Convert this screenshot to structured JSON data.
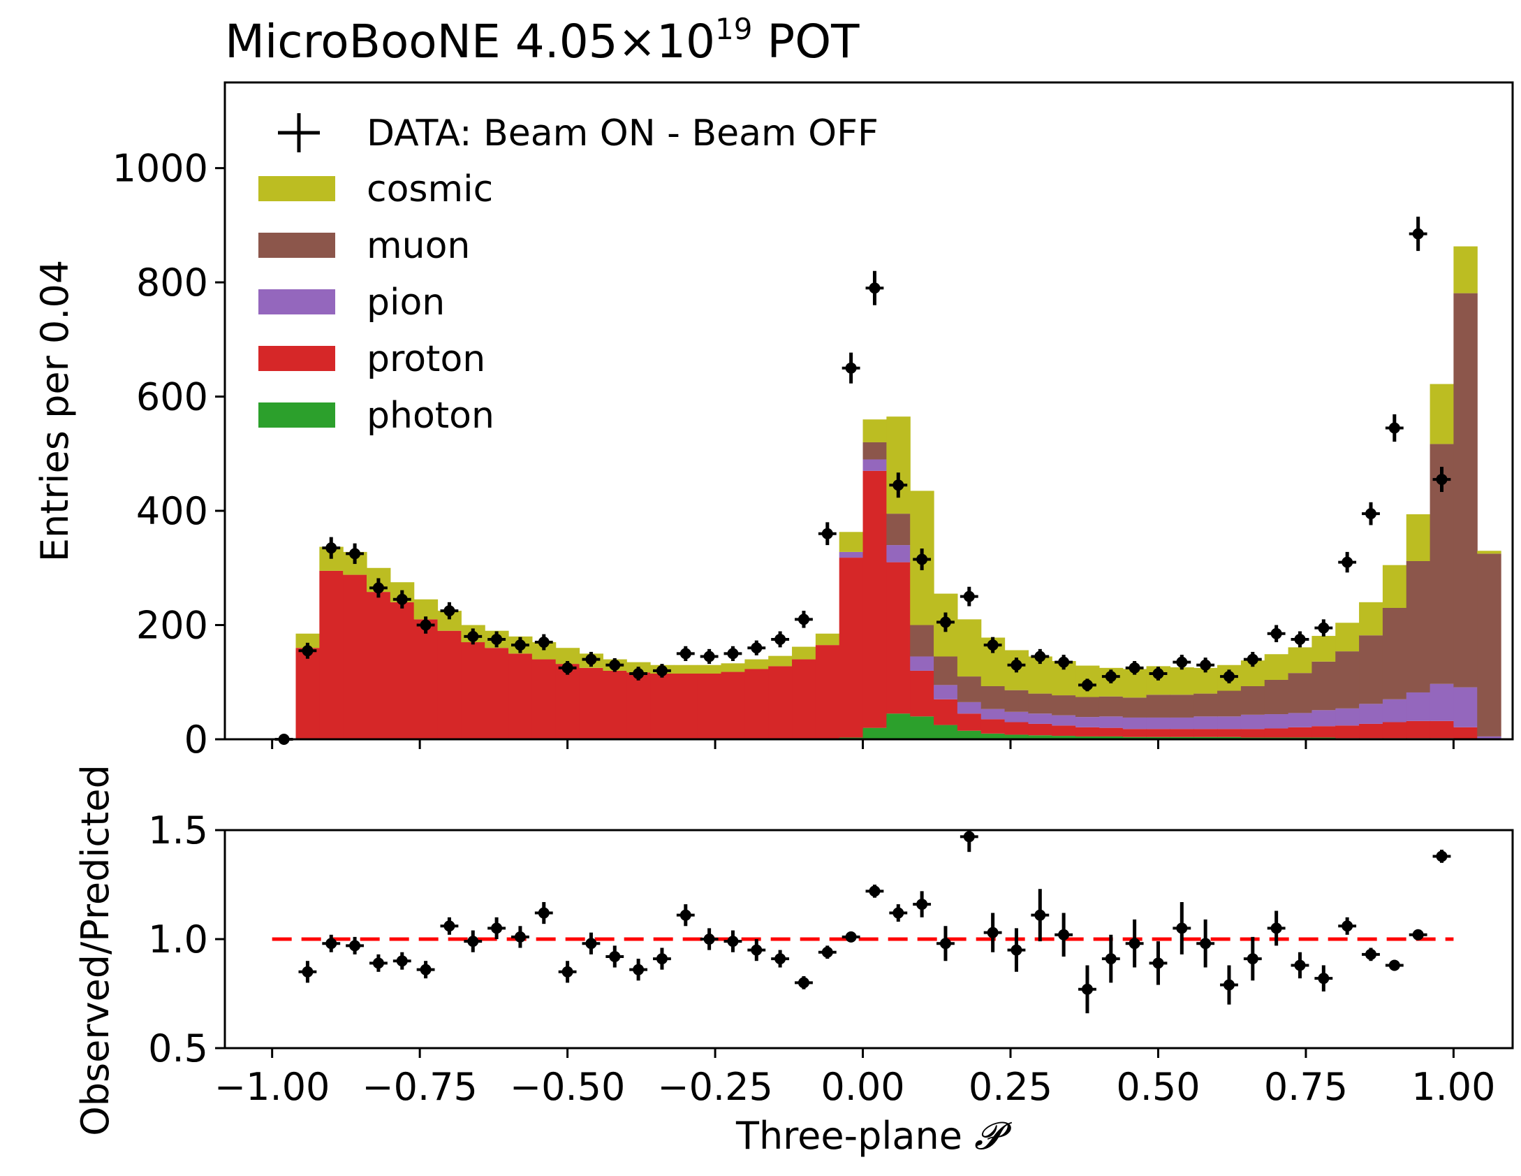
{
  "chart_data": [
    {
      "type": "stacked-histogram",
      "title": "MicroBooNE 4.05×10",
      "title_exponent": "19",
      "title_suffix": " POT",
      "ylabel": "Entries per 0.04",
      "xlim": [
        -1.08,
        1.1
      ],
      "ylim": [
        0,
        1150
      ],
      "yticks": [
        0,
        200,
        400,
        600,
        800,
        1000
      ],
      "ytick_labels": [
        "0",
        "200",
        "400",
        "600",
        "800",
        "1000"
      ],
      "bin_edges_start": -0.96,
      "bin_width": 0.04,
      "series": [
        {
          "name": "photon",
          "color": "#2ca02c",
          "values": [
            0,
            0,
            0,
            0,
            0,
            0,
            0,
            0,
            0,
            0,
            0,
            0,
            0,
            0,
            0,
            0,
            0,
            0,
            0,
            0,
            0,
            0,
            0,
            3,
            20,
            45,
            40,
            25,
            15,
            10,
            8,
            7,
            6,
            5,
            5,
            4,
            4,
            4,
            4,
            4,
            3,
            3,
            3,
            3,
            2,
            2,
            2,
            2,
            2,
            1,
            0
          ]
        },
        {
          "name": "proton",
          "color": "#d62728",
          "values": [
            160,
            295,
            288,
            258,
            240,
            210,
            190,
            170,
            160,
            150,
            140,
            132,
            125,
            120,
            117,
            115,
            115,
            115,
            118,
            123,
            128,
            140,
            165,
            315,
            450,
            265,
            80,
            45,
            30,
            25,
            22,
            20,
            18,
            16,
            15,
            14,
            14,
            14,
            14,
            14,
            15,
            16,
            18,
            20,
            22,
            25,
            28,
            30,
            30,
            20,
            0
          ]
        },
        {
          "name": "pion",
          "color": "#9467bd",
          "values": [
            0,
            0,
            0,
            0,
            0,
            0,
            0,
            0,
            0,
            0,
            0,
            0,
            0,
            0,
            0,
            0,
            0,
            0,
            0,
            0,
            0,
            0,
            0,
            10,
            20,
            30,
            25,
            25,
            20,
            18,
            18,
            18,
            18,
            18,
            20,
            20,
            20,
            20,
            22,
            22,
            25,
            25,
            25,
            28,
            30,
            35,
            40,
            50,
            65,
            70,
            5
          ]
        },
        {
          "name": "muon",
          "color": "#8c564b",
          "values": [
            0,
            0,
            0,
            0,
            0,
            0,
            0,
            0,
            0,
            0,
            0,
            0,
            0,
            0,
            0,
            0,
            0,
            0,
            0,
            0,
            0,
            0,
            0,
            0,
            30,
            55,
            55,
            50,
            45,
            40,
            38,
            35,
            35,
            35,
            35,
            35,
            40,
            40,
            40,
            45,
            50,
            60,
            70,
            85,
            100,
            120,
            160,
            230,
            420,
            690,
            320
          ]
        },
        {
          "name": "cosmic",
          "color": "#bcbd22",
          "values": [
            25,
            42,
            40,
            42,
            35,
            35,
            35,
            30,
            30,
            30,
            30,
            28,
            25,
            20,
            18,
            15,
            15,
            15,
            15,
            17,
            18,
            22,
            20,
            35,
            40,
            170,
            235,
            110,
            100,
            85,
            70,
            65,
            60,
            55,
            50,
            50,
            50,
            48,
            45,
            45,
            45,
            45,
            45,
            45,
            50,
            58,
            75,
            82,
            105,
            82,
            5
          ]
        }
      ],
      "data_series": {
        "name": "DATA: Beam ON - Beam OFF",
        "x": [
          -0.98,
          -0.94,
          -0.9,
          -0.86,
          -0.82,
          -0.78,
          -0.74,
          -0.7,
          -0.66,
          -0.62,
          -0.58,
          -0.54,
          -0.5,
          -0.46,
          -0.42,
          -0.38,
          -0.34,
          -0.3,
          -0.26,
          -0.22,
          -0.18,
          -0.14,
          -0.1,
          -0.06,
          -0.02,
          0.02,
          0.06,
          0.1,
          0.14,
          0.18,
          0.22,
          0.26,
          0.3,
          0.34,
          0.38,
          0.42,
          0.46,
          0.5,
          0.54,
          0.58,
          0.62,
          0.66,
          0.7,
          0.74,
          0.78,
          0.82,
          0.86,
          0.9,
          0.94,
          0.98
        ],
        "y": [
          0,
          155,
          335,
          325,
          265,
          245,
          200,
          225,
          180,
          175,
          165,
          170,
          125,
          140,
          130,
          115,
          120,
          150,
          145,
          150,
          160,
          175,
          210,
          360,
          650,
          790,
          445,
          315,
          205,
          250,
          165,
          130,
          145,
          135,
          95,
          110,
          125,
          115,
          135,
          130,
          110,
          140,
          185,
          175,
          195,
          310,
          395,
          545,
          885,
          455
        ],
        "yerr": [
          3,
          14,
          19,
          18,
          17,
          16,
          15,
          15,
          14,
          14,
          14,
          14,
          12,
          13,
          12,
          12,
          12,
          13,
          13,
          13,
          13,
          14,
          15,
          20,
          27,
          30,
          22,
          19,
          17,
          17,
          14,
          13,
          13,
          13,
          11,
          12,
          12,
          12,
          13,
          13,
          12,
          13,
          15,
          14,
          15,
          18,
          20,
          24,
          30,
          22
        ]
      },
      "legend": {
        "position": "top-left",
        "entries": [
          "DATA: Beam ON - Beam OFF",
          "cosmic",
          "muon",
          "pion",
          "proton",
          "photon"
        ]
      }
    },
    {
      "type": "scatter-errorbar",
      "ylabel": "Observed/Predicted",
      "xlabel": "Three-plane ",
      "xlabel_symbol": "𝓟",
      "xlim": [
        -1.08,
        1.1
      ],
      "ylim": [
        0.5,
        1.5
      ],
      "yticks": [
        0.5,
        1.0,
        1.5
      ],
      "ytick_labels": [
        "0.5",
        "1.0",
        "1.5"
      ],
      "xticks": [
        -1.0,
        -0.75,
        -0.5,
        -0.25,
        0.0,
        0.25,
        0.5,
        0.75,
        1.0
      ],
      "xtick_labels": [
        "−1.00",
        "−0.75",
        "−0.50",
        "−0.25",
        "0.00",
        "0.25",
        "0.50",
        "0.75",
        "1.00"
      ],
      "reference_line": {
        "y": 1.0,
        "x_range": [
          -1.0,
          1.0
        ],
        "color": "#ff0000",
        "style": "dashed"
      },
      "x": [
        -0.94,
        -0.9,
        -0.86,
        -0.82,
        -0.78,
        -0.74,
        -0.7,
        -0.66,
        -0.62,
        -0.58,
        -0.54,
        -0.5,
        -0.46,
        -0.42,
        -0.38,
        -0.34,
        -0.3,
        -0.26,
        -0.22,
        -0.18,
        -0.14,
        -0.1,
        -0.06,
        -0.02,
        0.02,
        0.06,
        0.1,
        0.14,
        0.18,
        0.22,
        0.26,
        0.3,
        0.34,
        0.38,
        0.42,
        0.46,
        0.5,
        0.54,
        0.58,
        0.62,
        0.66,
        0.7,
        0.74,
        0.78,
        0.82,
        0.86,
        0.9,
        0.94,
        0.98
      ],
      "y": [
        0.85,
        0.98,
        0.97,
        0.89,
        0.9,
        0.86,
        1.06,
        0.99,
        1.05,
        1.01,
        1.12,
        0.85,
        0.98,
        0.92,
        0.86,
        0.91,
        1.11,
        1.0,
        0.99,
        0.95,
        0.91,
        0.8,
        0.94,
        1.01,
        1.22,
        1.12,
        1.16,
        0.98,
        1.47,
        1.03,
        0.95,
        1.11,
        1.02,
        0.77,
        0.91,
        0.98,
        0.89,
        1.05,
        0.98,
        0.79,
        0.91,
        1.05,
        0.88,
        0.82,
        1.06,
        0.93,
        0.88,
        1.02,
        1.38
      ],
      "yerr": [
        0.05,
        0.04,
        0.04,
        0.04,
        0.04,
        0.04,
        0.04,
        0.05,
        0.05,
        0.05,
        0.05,
        0.05,
        0.05,
        0.05,
        0.05,
        0.05,
        0.05,
        0.05,
        0.05,
        0.05,
        0.04,
        0.03,
        0.03,
        0.02,
        0.03,
        0.04,
        0.06,
        0.08,
        0.07,
        0.09,
        0.1,
        0.12,
        0.1,
        0.11,
        0.11,
        0.11,
        0.1,
        0.12,
        0.11,
        0.09,
        0.1,
        0.08,
        0.06,
        0.06,
        0.04,
        0.03,
        0.02,
        0.02,
        0.03
      ]
    }
  ]
}
